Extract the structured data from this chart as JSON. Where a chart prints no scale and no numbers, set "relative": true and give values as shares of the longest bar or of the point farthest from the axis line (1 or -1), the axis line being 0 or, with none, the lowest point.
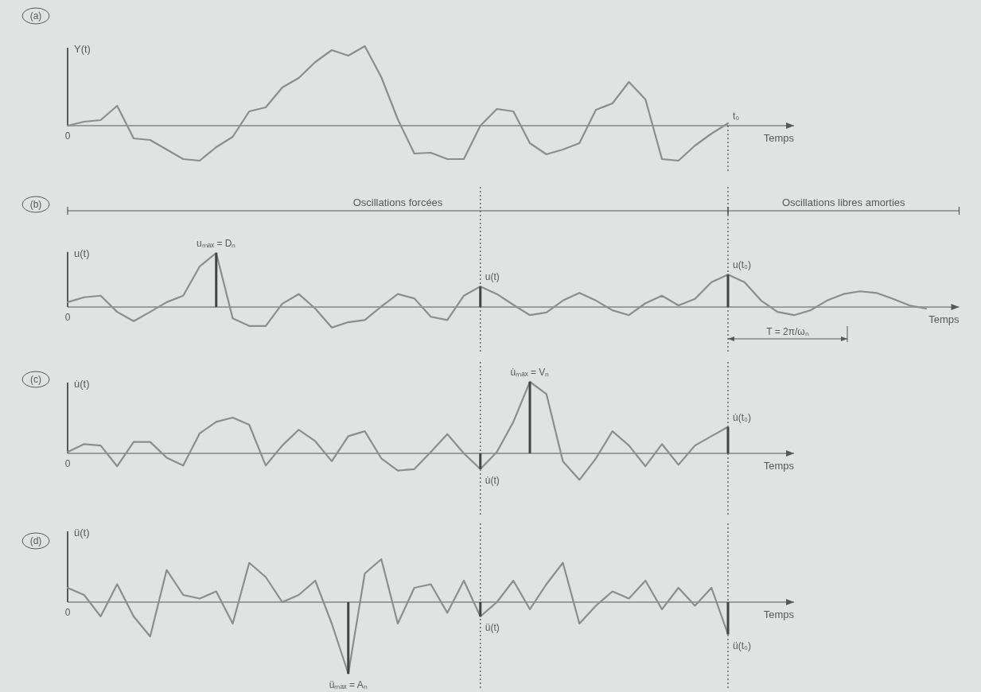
{
  "chart_data": [
    {
      "type": "line",
      "title": "(a)",
      "ylabel": "Y(t)",
      "xlabel": "Temps",
      "relative": true,
      "categories": [
        null,
        null,
        null,
        null,
        null,
        null,
        null,
        null,
        null,
        null,
        null,
        null,
        null,
        null,
        null,
        null,
        null,
        null,
        null,
        null,
        null,
        null,
        null,
        null,
        null,
        null,
        null,
        null,
        null,
        null,
        null,
        null,
        null,
        null,
        null,
        null,
        null,
        null,
        null,
        null,
        null,
        null,
        null,
        null,
        null
      ],
      "series": [
        {
          "color": "#8a8f8e",
          "values": [
            0,
            0.05,
            0.07,
            0.25,
            -0.16,
            -0.18,
            -0.3,
            -0.42,
            -0.44,
            -0.27,
            -0.14,
            0.18,
            0.23,
            0.48,
            0.6,
            0.8,
            0.95,
            0.88,
            1.0,
            0.61,
            0.08,
            -0.35,
            -0.34,
            -0.42,
            -0.42,
            0,
            0.21,
            0.18,
            -0.22,
            -0.36,
            -0.3,
            -0.22,
            0.2,
            0.28,
            0.55,
            0.33,
            -0.42,
            -0.44,
            -0.25,
            -0.1,
            0.03,
            null,
            null,
            null,
            null
          ]
        }
      ],
      "annotations": [
        "0",
        "t₀"
      ]
    },
    {
      "type": "line",
      "title": "(b)",
      "ylabel": "u(t)",
      "xlabel": "Temps",
      "relative": true,
      "categories": [
        null,
        null,
        null,
        null,
        null,
        null,
        null,
        null,
        null,
        null,
        null,
        null,
        null,
        null,
        null,
        null,
        null,
        null,
        null,
        null,
        null,
        null,
        null,
        null,
        null,
        null,
        null,
        null,
        null,
        null,
        null,
        null,
        null,
        null,
        null,
        null,
        null,
        null,
        null,
        null,
        null,
        null,
        null,
        null,
        null,
        null,
        null,
        null,
        null,
        null,
        null,
        null,
        null,
        null,
        null
      ],
      "series": [
        {
          "color": "#8a8f8e",
          "values": [
            0.09,
            0.18,
            0.21,
            -0.09,
            -0.26,
            -0.09,
            0.09,
            0.21,
            0.75,
            1.0,
            -0.21,
            -0.35,
            -0.35,
            0.06,
            0.24,
            -0.03,
            -0.38,
            -0.28,
            -0.24,
            0.01,
            0.24,
            0.16,
            -0.18,
            -0.24,
            0.21,
            0.38,
            0.24,
            0.04,
            -0.15,
            -0.1,
            0.12,
            0.26,
            0.12,
            -0.06,
            -0.15,
            0.07,
            0.21,
            0.03,
            0.15,
            0.46,
            0.6,
            0.46,
            0.12,
            -0.09,
            -0.15,
            -0.06,
            0.12,
            0.24,
            0.29,
            0.26,
            0.15,
            0.03,
            -0.03,
            null,
            null
          ]
        }
      ],
      "annotations": [
        "0",
        "Oscillations forcées",
        "Oscillations libres amorties",
        "uₘₐₓ = Dₙ",
        "u(t)",
        "u(t₀)",
        "T = 2π/ωₙ"
      ]
    },
    {
      "type": "line",
      "title": "(c)",
      "ylabel": "u̇(t)",
      "xlabel": "Temps",
      "relative": true,
      "categories": [
        null,
        null,
        null,
        null,
        null,
        null,
        null,
        null,
        null,
        null,
        null,
        null,
        null,
        null,
        null,
        null,
        null,
        null,
        null,
        null,
        null,
        null,
        null,
        null,
        null,
        null,
        null,
        null,
        null,
        null,
        null,
        null,
        null,
        null,
        null,
        null,
        null,
        null,
        null,
        null,
        null,
        null,
        null,
        null,
        null
      ],
      "series": [
        {
          "color": "#8a8f8e",
          "values": [
            0.02,
            0.13,
            0.11,
            -0.18,
            0.16,
            0.16,
            -0.06,
            -0.17,
            0.28,
            0.44,
            0.5,
            0.4,
            -0.17,
            0.11,
            0.33,
            0.17,
            -0.11,
            0.24,
            0.31,
            -0.07,
            -0.24,
            -0.22,
            0.02,
            0.27,
            0,
            -0.22,
            0.02,
            0.44,
            1.0,
            0.83,
            -0.11,
            -0.37,
            -0.07,
            0.31,
            0.11,
            -0.18,
            0.13,
            -0.16,
            0.11,
            0.24,
            0.37,
            null,
            null,
            null,
            null
          ]
        }
      ],
      "annotations": [
        "0",
        "u̇ₘₐₓ = Vₙ",
        "u̇(t)",
        "u̇(t₀)"
      ]
    },
    {
      "type": "line",
      "title": "(d)",
      "ylabel": "ü(t)",
      "xlabel": "Temps",
      "relative": true,
      "categories": [
        null,
        null,
        null,
        null,
        null,
        null,
        null,
        null,
        null,
        null,
        null,
        null,
        null,
        null,
        null,
        null,
        null,
        null,
        null,
        null,
        null,
        null,
        null,
        null,
        null,
        null,
        null,
        null,
        null,
        null,
        null,
        null,
        null,
        null,
        null,
        null,
        null,
        null,
        null,
        null,
        null,
        null,
        null,
        null,
        null
      ],
      "series": [
        {
          "color": "#8a8f8e",
          "values": [
            0.2,
            0.1,
            -0.2,
            0.25,
            -0.2,
            -0.48,
            0.45,
            0.1,
            0.05,
            0.15,
            -0.3,
            0.55,
            0.35,
            0,
            0.1,
            0.3,
            -0.3,
            -1.0,
            0.4,
            0.6,
            -0.3,
            0.2,
            0.25,
            -0.15,
            0.3,
            -0.2,
            0,
            0.3,
            -0.1,
            0.25,
            0.55,
            -0.3,
            -0.05,
            0.15,
            0.05,
            0.3,
            -0.1,
            0.2,
            -0.05,
            0.2,
            -0.45,
            null,
            null,
            null,
            null
          ]
        }
      ],
      "annotations": [
        "0",
        "üₘₐₓ = Aₙ",
        "ü(t)",
        "ü(t₀)"
      ]
    }
  ]
}
